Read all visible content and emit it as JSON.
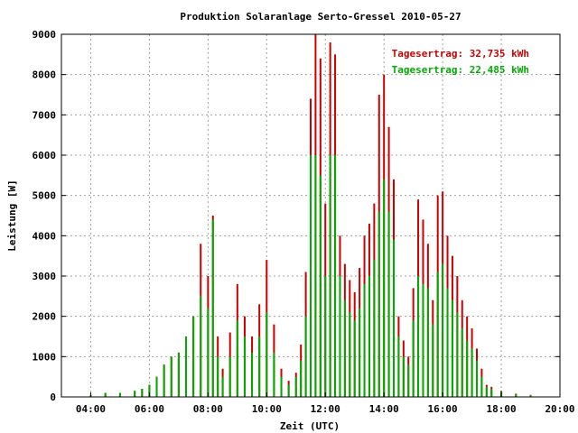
{
  "colors": {
    "series1": "#cc0000",
    "series2": "#00aa00",
    "grid": "#a0a0a0",
    "axis": "#000000",
    "background": "#ffffff"
  },
  "chart_data": {
    "type": "bar",
    "title": "Produktion Solaranlage Serto-Gressel 2010-05-27",
    "xlabel": "Zeit (UTC)",
    "ylabel": "Leistung [W]",
    "ylim": [
      0,
      9000
    ],
    "xlim": [
      "03:00",
      "20:00"
    ],
    "y_ticks": [
      "0",
      "1000",
      "2000",
      "3000",
      "4000",
      "5000",
      "6000",
      "7000",
      "8000",
      "9000"
    ],
    "x_ticks": [
      "04:00",
      "06:00",
      "08:00",
      "10:00",
      "12:00",
      "14:00",
      "16:00",
      "18:00",
      "20:00"
    ],
    "grid": true,
    "legend_position": "top-right",
    "x": [
      "04:00",
      "04:30",
      "05:00",
      "05:30",
      "05:45",
      "06:00",
      "06:15",
      "06:30",
      "06:45",
      "07:00",
      "07:15",
      "07:30",
      "07:45",
      "08:00",
      "08:10",
      "08:20",
      "08:30",
      "08:45",
      "09:00",
      "09:15",
      "09:30",
      "09:45",
      "10:00",
      "10:15",
      "10:30",
      "10:45",
      "11:00",
      "11:10",
      "11:20",
      "11:30",
      "11:40",
      "11:50",
      "12:00",
      "12:10",
      "12:20",
      "12:30",
      "12:40",
      "12:50",
      "13:00",
      "13:10",
      "13:20",
      "13:30",
      "13:40",
      "13:50",
      "14:00",
      "14:10",
      "14:20",
      "14:30",
      "14:40",
      "14:50",
      "15:00",
      "15:10",
      "15:20",
      "15:30",
      "15:40",
      "15:50",
      "16:00",
      "16:10",
      "16:20",
      "16:30",
      "16:40",
      "16:50",
      "17:00",
      "17:10",
      "17:20",
      "17:30",
      "17:40",
      "18:00",
      "18:30",
      "19:00"
    ],
    "series": [
      {
        "name": "Tagesertrag: 32,735 kWh",
        "values": [
          50,
          100,
          100,
          150,
          200,
          300,
          500,
          800,
          1000,
          1100,
          1500,
          2000,
          3800,
          3000,
          4500,
          1500,
          700,
          1600,
          2800,
          2000,
          1500,
          2300,
          3400,
          1800,
          700,
          400,
          600,
          1300,
          3100,
          7400,
          9000,
          8400,
          4800,
          8800,
          8500,
          4000,
          3300,
          2900,
          2600,
          3200,
          4000,
          4300,
          4800,
          7500,
          8000,
          6700,
          5400,
          2000,
          1400,
          1000,
          2700,
          4900,
          4400,
          3800,
          2400,
          5000,
          5100,
          4000,
          3500,
          3000,
          2400,
          2000,
          1700,
          1200,
          700,
          300,
          250,
          150,
          80,
          50
        ]
      },
      {
        "name": "Tagesertrag: 22,485 kWh",
        "values": [
          50,
          100,
          100,
          150,
          200,
          300,
          500,
          800,
          1000,
          1100,
          1500,
          2000,
          2500,
          2200,
          4400,
          1000,
          500,
          1000,
          1900,
          1500,
          1100,
          1500,
          2100,
          1100,
          500,
          300,
          500,
          900,
          2000,
          6000,
          6000,
          5500,
          3000,
          6000,
          6000,
          3000,
          2400,
          2100,
          1900,
          2200,
          2800,
          3000,
          3400,
          4600,
          5400,
          4600,
          3900,
          1500,
          1000,
          800,
          1900,
          3000,
          2800,
          2700,
          1800,
          3100,
          3300,
          2700,
          2400,
          2100,
          1700,
          1400,
          1200,
          900,
          500,
          250,
          200,
          120,
          70,
          40
        ]
      }
    ]
  }
}
